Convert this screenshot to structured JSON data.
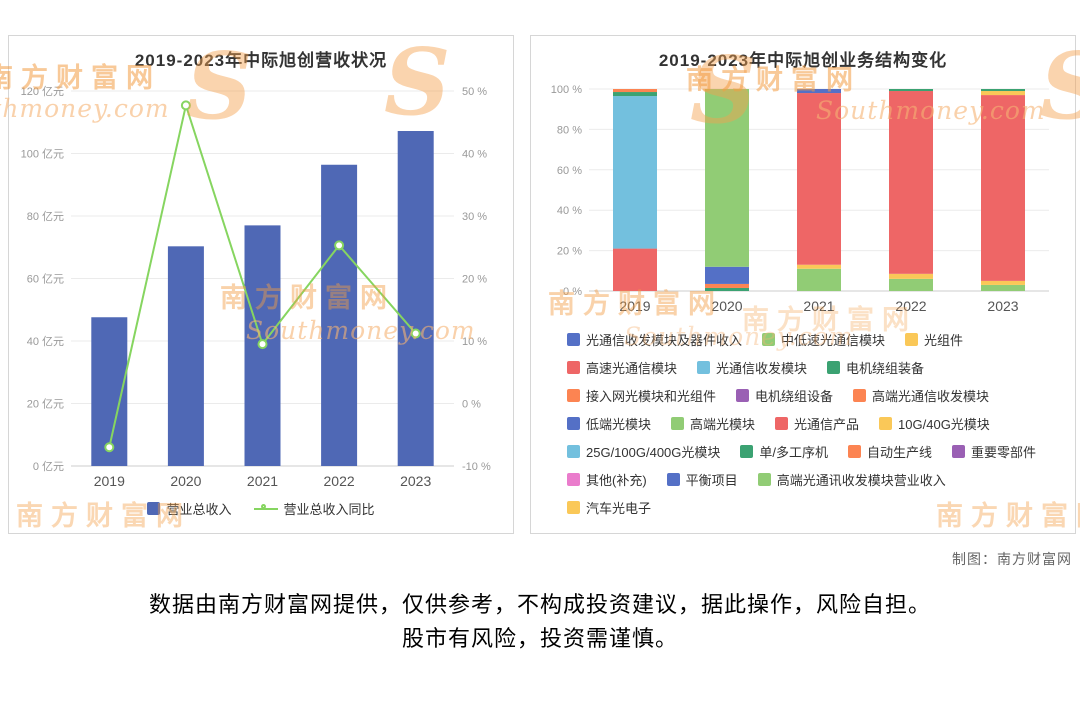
{
  "watermark": {
    "cn": "南方财富网",
    "en": "Southmoney.com",
    "s": "S",
    "color": "#f39d44"
  },
  "footer": {
    "credit": "制图：南方财富网",
    "disclaimer_line1": "数据由南方财富网提供，仅供参考，不构成投资建议，据此操作，风险自担。",
    "disclaimer_line2": "股市有风险，投资需谨慎。"
  },
  "chart_data": [
    {
      "id": "revenue",
      "type": "bar",
      "title": "2019-2023年中际旭创营收状况",
      "categories": [
        "2019",
        "2020",
        "2021",
        "2022",
        "2023"
      ],
      "series": [
        {
          "name": "营业总收入",
          "type": "bar",
          "axis": "left",
          "unit": "亿元",
          "color": "#4f68b5",
          "values": [
            47.6,
            70.3,
            77.0,
            96.4,
            107.2
          ]
        },
        {
          "name": "营业总收入同比",
          "type": "line",
          "axis": "right",
          "unit": "%",
          "color": "#86d560",
          "values": [
            -7.0,
            47.7,
            9.5,
            25.3,
            11.2
          ]
        }
      ],
      "left_axis": {
        "min": 0,
        "max": 120,
        "step": 20,
        "suffix": " 亿元"
      },
      "right_axis": {
        "min": -10,
        "max": 50,
        "step": 10,
        "suffix": " %"
      },
      "grid": true,
      "legend_position": "bottom"
    },
    {
      "id": "structure",
      "type": "stacked-bar-100",
      "title": "2019-2023年中际旭创业务结构变化",
      "categories": [
        "2019",
        "2020",
        "2021",
        "2022",
        "2023"
      ],
      "y_axis": {
        "min": 0,
        "max": 100,
        "step": 20,
        "suffix": " %"
      },
      "grid": true,
      "legend_position": "bottom",
      "series": [
        {
          "name": "光通信收发模块及器件收入",
          "color": "#5470c6",
          "values": [
            0,
            0,
            0,
            0,
            0
          ]
        },
        {
          "name": "中低速光通信模块",
          "color": "#91cc75",
          "values": [
            0,
            0,
            11,
            6,
            3
          ]
        },
        {
          "name": "光组件",
          "color": "#fac858",
          "values": [
            0,
            0,
            2,
            2.5,
            2
          ]
        },
        {
          "name": "高速光通信模块",
          "color": "#ee6666",
          "values": [
            21,
            0,
            85,
            90.5,
            92
          ]
        },
        {
          "name": "光通信收发模块",
          "color": "#73c0de",
          "values": [
            75.5,
            0,
            0,
            0,
            0
          ]
        },
        {
          "name": "电机绕组装备",
          "color": "#3ba272",
          "values": [
            2,
            1.5,
            0,
            1,
            0
          ]
        },
        {
          "name": "接入网光模块和光组件",
          "color": "#fc8452",
          "values": [
            1.5,
            0,
            0,
            0,
            0
          ]
        },
        {
          "name": "电机绕组设备",
          "color": "#9a60b4",
          "values": [
            0,
            0,
            0,
            0,
            0
          ]
        },
        {
          "name": "高端光通信收发模块",
          "color": "#fc8452",
          "values": [
            0,
            2,
            0,
            0,
            0
          ]
        },
        {
          "name": "低端光模块",
          "color": "#5470c6",
          "values": [
            0,
            8.5,
            0,
            0,
            0
          ]
        },
        {
          "name": "高端光模块",
          "color": "#91cc75",
          "values": [
            0,
            88,
            0,
            0,
            0
          ]
        },
        {
          "name": "光通信产品",
          "color": "#ee6666",
          "values": [
            0,
            0,
            0,
            0,
            0
          ]
        },
        {
          "name": "10G/40G光模块",
          "color": "#fac858",
          "values": [
            0,
            0,
            0,
            0,
            2
          ]
        },
        {
          "name": "25G/100G/400G光模块",
          "color": "#73c0de",
          "values": [
            0,
            0,
            0,
            0,
            0
          ]
        },
        {
          "name": "单/多工序机",
          "color": "#3ba272",
          "values": [
            0,
            0,
            0,
            0,
            1
          ]
        },
        {
          "name": "自动生产线",
          "color": "#fc8452",
          "values": [
            0,
            0,
            0,
            0,
            0
          ]
        },
        {
          "name": "重要零部件",
          "color": "#9a60b4",
          "values": [
            0,
            0,
            0,
            0,
            0
          ]
        },
        {
          "name": "其他(补充)",
          "color": "#ea7ccc",
          "values": [
            0,
            0,
            0,
            0,
            0
          ]
        },
        {
          "name": "平衡项目",
          "color": "#5470c6",
          "values": [
            0,
            0,
            2,
            0,
            0
          ]
        },
        {
          "name": "高端光通讯收发模块营业收入",
          "color": "#91cc75",
          "values": [
            0,
            0,
            0,
            0,
            0
          ]
        },
        {
          "name": "汽车光电子",
          "color": "#fac858",
          "values": [
            0,
            0,
            0,
            0,
            0
          ]
        }
      ]
    }
  ]
}
